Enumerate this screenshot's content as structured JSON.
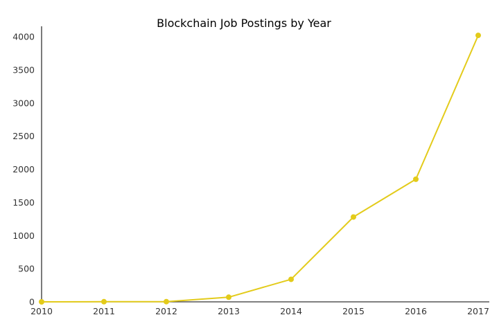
{
  "chart_data": {
    "type": "line",
    "title": "Blockchain Job Postings by Year",
    "xlabel": "",
    "ylabel": "",
    "x": [
      "2010",
      "2011",
      "2012",
      "2013",
      "2014",
      "2015",
      "2016",
      "2017"
    ],
    "series": [
      {
        "values": [
          0,
          2,
          3,
          70,
          340,
          1280,
          1850,
          4020
        ]
      }
    ],
    "y_ticks": [
      "0",
      "500",
      "1000",
      "1500",
      "2000",
      "2500",
      "3000",
      "3500",
      "4000"
    ],
    "ylim": [
      0,
      4000
    ],
    "grid": false,
    "legend": "none",
    "colors": {
      "series": "#e3cb1a",
      "axis": "#333333",
      "text": "#333333"
    }
  }
}
